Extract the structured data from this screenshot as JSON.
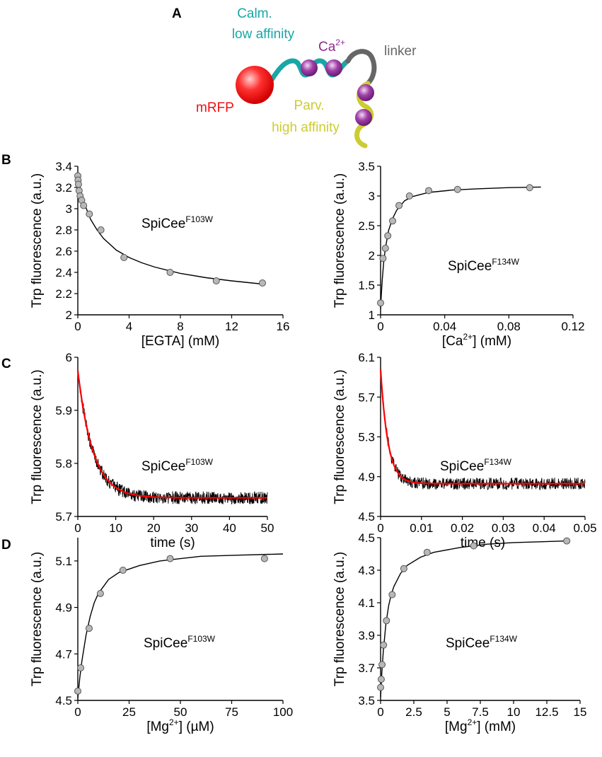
{
  "figure": {
    "panel_labels": [
      "A",
      "B",
      "C",
      "D"
    ],
    "schematic": {
      "calm_label_line1": "Calm.",
      "calm_label_line2": "low affinity",
      "ca_label": "Ca",
      "ca_label_sup": "2+",
      "linker_label": "linker",
      "mrfp_label": "mRFP",
      "parv_label_line1": "Parv.",
      "parv_label_line2": "high affinity",
      "colors": {
        "calm": "#1aa6a6",
        "linker": "#666666",
        "parv": "#cccc33",
        "mrfp": "#ee1111",
        "ca": "#8e2a8e"
      }
    }
  },
  "chart_data": [
    {
      "id": "B-left",
      "type": "scatter",
      "annotation": "SpiCee",
      "annotation_sup": "F103W",
      "xlabel": "[EGTA] (mM)",
      "ylabel": "Trp fluorescence (a.u.)",
      "xlim": [
        0,
        16
      ],
      "ylim": [
        2,
        3.4
      ],
      "xticks": [
        0,
        4,
        8,
        12,
        16
      ],
      "yticks": [
        2,
        2.2,
        2.4,
        2.6,
        2.8,
        3,
        3.2,
        3.4
      ],
      "ytick_labels": [
        "2",
        "2.2",
        "2.4",
        "2.6",
        "2.8",
        "3",
        "3.2",
        "3.4"
      ],
      "points": {
        "x": [
          0,
          0.02,
          0.05,
          0.1,
          0.18,
          0.3,
          0.45,
          0.9,
          1.8,
          3.6,
          7.2,
          10.8,
          14.4
        ],
        "y": [
          3.31,
          3.27,
          3.23,
          3.17,
          3.12,
          3.08,
          3.03,
          2.95,
          2.8,
          2.54,
          2.4,
          2.32,
          2.3
        ]
      },
      "fit": {
        "x": [
          0,
          0.25,
          0.5,
          1,
          1.5,
          2,
          3,
          4,
          5,
          6,
          8,
          10,
          12,
          14.4
        ],
        "y": [
          3.32,
          3.16,
          3.05,
          2.9,
          2.8,
          2.72,
          2.61,
          2.54,
          2.49,
          2.45,
          2.39,
          2.35,
          2.32,
          2.29
        ]
      }
    },
    {
      "id": "B-right",
      "type": "scatter",
      "annotation": "SpiCee",
      "annotation_sup": "F134W",
      "xlabel": "[Ca",
      "xlabel_sup": "2+",
      "xlabel_tail": "] (mM)",
      "ylabel": "Trp fluorescence (a.u.)",
      "xlim": [
        0,
        0.12
      ],
      "ylim": [
        1,
        3.5
      ],
      "xticks": [
        0,
        0.04,
        0.08,
        0.12
      ],
      "xtick_labels": [
        "0",
        "0.04",
        "0.08",
        "0.12"
      ],
      "yticks": [
        1,
        1.5,
        2,
        2.5,
        3,
        3.5
      ],
      "ytick_labels": [
        "1",
        "1.5",
        "2",
        "2.5",
        "3",
        "3.5"
      ],
      "points": {
        "x": [
          0,
          0.0015,
          0.003,
          0.0045,
          0.0075,
          0.0115,
          0.018,
          0.03,
          0.048,
          0.093
        ],
        "y": [
          1.2,
          1.95,
          2.12,
          2.33,
          2.58,
          2.84,
          3.0,
          3.09,
          3.11,
          3.14
        ]
      },
      "fit": {
        "x": [
          0,
          0.0005,
          0.001,
          0.002,
          0.003,
          0.005,
          0.0075,
          0.01,
          0.015,
          0.02,
          0.03,
          0.045,
          0.06,
          0.08,
          0.1
        ],
        "y": [
          1.1,
          1.35,
          1.58,
          1.9,
          2.12,
          2.42,
          2.62,
          2.76,
          2.92,
          2.99,
          3.06,
          3.1,
          3.12,
          3.14,
          3.15
        ]
      }
    },
    {
      "id": "C-left",
      "type": "line",
      "annotation": "SpiCee",
      "annotation_sup": "F103W",
      "xlabel": "time (s)",
      "ylabel": "Trp fluorescence (a.u.)",
      "xlim": [
        0,
        50
      ],
      "ylim": [
        5.7,
        6
      ],
      "xticks": [
        0,
        10,
        20,
        30,
        40,
        50
      ],
      "yticks": [
        5.7,
        5.8,
        5.9,
        6
      ],
      "ytick_labels": [
        "5.7",
        "5.8",
        "5.9",
        "6"
      ],
      "trace_model": {
        "baseline": 5.735,
        "amplitude": 0.24,
        "tau": 4.0,
        "noise": 0.012
      },
      "fit_color": "#ff0000"
    },
    {
      "id": "C-right",
      "type": "line",
      "annotation": "SpiCee",
      "annotation_sup": "F134W",
      "xlabel": "time (s)",
      "ylabel": "Trp fluorescence (a.u.)",
      "xlim": [
        0,
        0.05
      ],
      "ylim": [
        4.5,
        6.1
      ],
      "xticks": [
        0,
        0.01,
        0.02,
        0.03,
        0.04,
        0.05
      ],
      "xtick_labels": [
        "0",
        "0.01",
        "0.02",
        "0.03",
        "0.04",
        "0.05"
      ],
      "yticks": [
        4.5,
        4.9,
        5.3,
        5.7,
        6.1
      ],
      "ytick_labels": [
        "4.5",
        "4.9",
        "5.3",
        "5.7",
        "6.1"
      ],
      "trace_model": {
        "baseline": 4.83,
        "amplitude": 1.15,
        "tau": 0.0018,
        "noise": 0.06
      },
      "fit_color": "#ff0000"
    },
    {
      "id": "D-left",
      "type": "scatter",
      "annotation": "SpiCee",
      "annotation_sup": "F103W",
      "xlabel": "[Mg",
      "xlabel_sup": "2+",
      "xlabel_tail": "] (µM)",
      "ylabel": "Trp fluorescence (a.u.)",
      "xlim": [
        0,
        100
      ],
      "ylim": [
        4.5,
        5.2
      ],
      "xticks": [
        0,
        25,
        50,
        75,
        100
      ],
      "yticks": [
        4.5,
        4.7,
        4.9,
        5.1
      ],
      "ytick_labels": [
        "4.5",
        "4.7",
        "4.9",
        "5.1"
      ],
      "points": {
        "x": [
          0,
          1.4,
          5.5,
          11,
          22,
          45,
          91
        ],
        "y": [
          4.54,
          4.64,
          4.81,
          4.96,
          5.06,
          5.11,
          5.11
        ]
      },
      "fit": {
        "x": [
          0,
          1,
          2,
          4,
          6,
          8,
          10,
          15,
          20,
          30,
          40,
          60,
          80,
          100
        ],
        "y": [
          4.51,
          4.6,
          4.67,
          4.78,
          4.86,
          4.92,
          4.96,
          5.02,
          5.05,
          5.08,
          5.1,
          5.12,
          5.125,
          5.13
        ]
      }
    },
    {
      "id": "D-right",
      "type": "scatter",
      "annotation": "SpiCee",
      "annotation_sup": "F134W",
      "xlabel": "[Mg",
      "xlabel_sup": "2+",
      "xlabel_tail": "] (mM)",
      "ylabel": "Trp fluorescence (a.u.)",
      "xlim": [
        0,
        15
      ],
      "ylim": [
        3.5,
        4.5
      ],
      "xticks": [
        0,
        2.5,
        5,
        7.5,
        10,
        12.5,
        15
      ],
      "xtick_labels": [
        "0",
        "2.5",
        "5",
        "7.5",
        "10",
        "12.5",
        "15"
      ],
      "yticks": [
        3.5,
        3.7,
        3.9,
        4.1,
        4.3,
        4.5
      ],
      "ytick_labels": [
        "3.5",
        "3.7",
        "3.9",
        "4.1",
        "4.3",
        "4.5"
      ],
      "points": {
        "x": [
          0,
          0.05,
          0.11,
          0.22,
          0.44,
          0.87,
          1.75,
          3.5,
          7,
          14
        ],
        "y": [
          3.58,
          3.63,
          3.72,
          3.84,
          3.99,
          4.15,
          4.31,
          4.41,
          4.45,
          4.48
        ]
      },
      "fit": {
        "x": [
          0,
          0.1,
          0.2,
          0.4,
          0.6,
          0.8,
          1,
          1.5,
          2,
          3,
          4,
          6,
          8,
          10,
          12,
          14
        ],
        "y": [
          3.52,
          3.68,
          3.8,
          3.97,
          4.08,
          4.15,
          4.2,
          4.28,
          4.33,
          4.38,
          4.41,
          4.44,
          4.46,
          4.47,
          4.475,
          4.48
        ]
      }
    }
  ]
}
